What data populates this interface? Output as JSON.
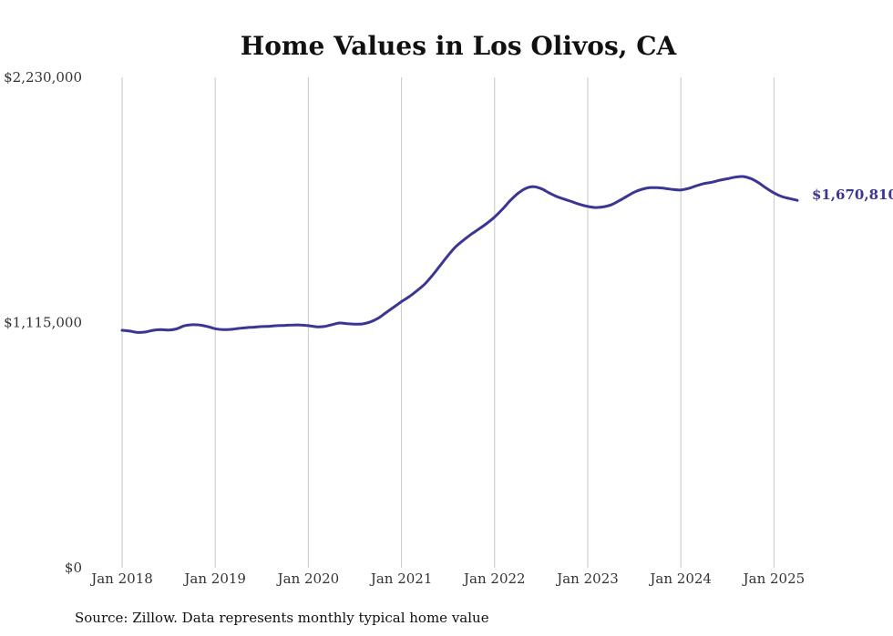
{
  "chart_data": {
    "type": "line",
    "title": "Home Values in Los Olivos, CA",
    "xlabel": "",
    "ylabel": "",
    "ylim": [
      0,
      2230000
    ],
    "y_ticks": [
      {
        "value": 0,
        "label": "$0"
      },
      {
        "value": 1115000,
        "label": "$1,115,000"
      },
      {
        "value": 2230000,
        "label": "$2,230,000"
      }
    ],
    "x_ticks": [
      {
        "value": "2018-01",
        "label": "Jan 2018"
      },
      {
        "value": "2019-01",
        "label": "Jan 2019"
      },
      {
        "value": "2020-01",
        "label": "Jan 2020"
      },
      {
        "value": "2021-01",
        "label": "Jan 2021"
      },
      {
        "value": "2022-01",
        "label": "Jan 2022"
      },
      {
        "value": "2023-01",
        "label": "Jan 2023"
      },
      {
        "value": "2024-01",
        "label": "Jan 2024"
      },
      {
        "value": "2025-01",
        "label": "Jan 2025"
      }
    ],
    "grid": "vertical",
    "line_color": "#3b3594",
    "series": [
      {
        "points": [
          [
            "2018-01",
            1080000
          ],
          [
            "2018-02",
            1076000
          ],
          [
            "2018-03",
            1070000
          ],
          [
            "2018-04",
            1072000
          ],
          [
            "2018-05",
            1080000
          ],
          [
            "2018-06",
            1083000
          ],
          [
            "2018-07",
            1081000
          ],
          [
            "2018-08",
            1086000
          ],
          [
            "2018-09",
            1100000
          ],
          [
            "2018-10",
            1105000
          ],
          [
            "2018-11",
            1104000
          ],
          [
            "2018-12",
            1097000
          ],
          [
            "2019-01",
            1087000
          ],
          [
            "2019-02",
            1083000
          ],
          [
            "2019-03",
            1084000
          ],
          [
            "2019-04",
            1088000
          ],
          [
            "2019-05",
            1092000
          ],
          [
            "2019-06",
            1094000
          ],
          [
            "2019-07",
            1097000
          ],
          [
            "2019-08",
            1098000
          ],
          [
            "2019-09",
            1101000
          ],
          [
            "2019-10",
            1102000
          ],
          [
            "2019-11",
            1104000
          ],
          [
            "2019-12",
            1104000
          ],
          [
            "2020-01",
            1101000
          ],
          [
            "2020-02",
            1096000
          ],
          [
            "2020-03",
            1097000
          ],
          [
            "2020-04",
            1105000
          ],
          [
            "2020-05",
            1113000
          ],
          [
            "2020-06",
            1110000
          ],
          [
            "2020-07",
            1108000
          ],
          [
            "2020-08",
            1109000
          ],
          [
            "2020-09",
            1118000
          ],
          [
            "2020-10",
            1135000
          ],
          [
            "2020-11",
            1160000
          ],
          [
            "2020-12",
            1185000
          ],
          [
            "2021-01",
            1210000
          ],
          [
            "2021-02",
            1233000
          ],
          [
            "2021-03",
            1260000
          ],
          [
            "2021-04",
            1290000
          ],
          [
            "2021-05",
            1330000
          ],
          [
            "2021-06",
            1375000
          ],
          [
            "2021-07",
            1420000
          ],
          [
            "2021-08",
            1460000
          ],
          [
            "2021-09",
            1490000
          ],
          [
            "2021-10",
            1517000
          ],
          [
            "2021-11",
            1541000
          ],
          [
            "2021-12",
            1566000
          ],
          [
            "2022-01",
            1595000
          ],
          [
            "2022-02",
            1630000
          ],
          [
            "2022-03",
            1669000
          ],
          [
            "2022-04",
            1702000
          ],
          [
            "2022-05",
            1725000
          ],
          [
            "2022-06",
            1733000
          ],
          [
            "2022-07",
            1724000
          ],
          [
            "2022-08",
            1705000
          ],
          [
            "2022-09",
            1688000
          ],
          [
            "2022-10",
            1676000
          ],
          [
            "2022-11",
            1664000
          ],
          [
            "2022-12",
            1652000
          ],
          [
            "2023-01",
            1643000
          ],
          [
            "2023-02",
            1638000
          ],
          [
            "2023-03",
            1641000
          ],
          [
            "2023-04",
            1650000
          ],
          [
            "2023-05",
            1668000
          ],
          [
            "2023-06",
            1688000
          ],
          [
            "2023-07",
            1708000
          ],
          [
            "2023-08",
            1721000
          ],
          [
            "2023-09",
            1728000
          ],
          [
            "2023-10",
            1728000
          ],
          [
            "2023-11",
            1725000
          ],
          [
            "2023-12",
            1720000
          ],
          [
            "2024-01",
            1718000
          ],
          [
            "2024-02",
            1725000
          ],
          [
            "2024-03",
            1737000
          ],
          [
            "2024-04",
            1747000
          ],
          [
            "2024-05",
            1753000
          ],
          [
            "2024-06",
            1762000
          ],
          [
            "2024-07",
            1769000
          ],
          [
            "2024-08",
            1776000
          ],
          [
            "2024-09",
            1779000
          ],
          [
            "2024-10",
            1770000
          ],
          [
            "2024-11",
            1751000
          ],
          [
            "2024-12",
            1726000
          ],
          [
            "2025-01",
            1704000
          ],
          [
            "2025-02",
            1688000
          ],
          [
            "2025-03",
            1679000
          ],
          [
            "2025-04",
            1670810
          ]
        ]
      }
    ],
    "end_label": "$1,670,810",
    "source": "Source: Zillow. Data represents monthly typical home value"
  }
}
